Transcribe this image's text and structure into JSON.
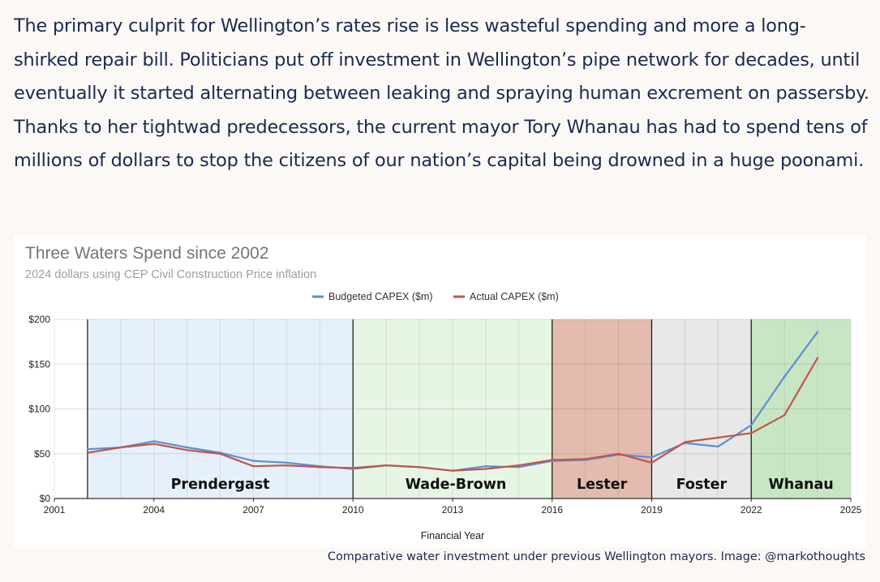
{
  "article": {
    "paragraph": "The primary culprit for Wellington’s rates rise is less wasteful spending and more a long-shirked repair bill. Politicians put off investment in Wellington’s pipe network for decades, until eventually it started alternating between leaking and spraying human excrement on passersby. Thanks to her tightwad predecessors, the current mayor Tory Whanau has had to spend tens of millions of dollars to stop the citizens of our nation’s capital being drowned in a huge poonami."
  },
  "caption": "Comparative water investment under previous Wellington mayors. Image: @markothoughts",
  "chart_data": {
    "type": "line",
    "title": "Three Waters Spend since 2002",
    "subtitle": "2024 dollars using CEP Civil Construction Price inflation",
    "xlabel": "Financial Year",
    "ylabel": "",
    "xlim": [
      2001,
      2025
    ],
    "ylim": [
      0,
      200
    ],
    "x_ticks": [
      "2001",
      "2004",
      "2007",
      "2010",
      "2013",
      "2016",
      "2019",
      "2022",
      "2025"
    ],
    "x_tick_values": [
      2001,
      2004,
      2007,
      2010,
      2013,
      2016,
      2019,
      2022,
      2025
    ],
    "y_ticks": [
      "$0",
      "$50",
      "$100",
      "$150",
      "$200"
    ],
    "y_tick_values": [
      0,
      50,
      100,
      150,
      200
    ],
    "grid": true,
    "legend_position": "top",
    "series": [
      {
        "name": "Budgeted CAPEX ($m)",
        "color": "#5b8fd3",
        "x": [
          2002,
          2003,
          2004,
          2005,
          2006,
          2007,
          2008,
          2009,
          2010,
          2011,
          2012,
          2013,
          2014,
          2015,
          2016,
          2017,
          2018,
          2019,
          2020,
          2021,
          2022,
          2023,
          2024
        ],
        "values": [
          55,
          57,
          64,
          57,
          51,
          42,
          40,
          36,
          33,
          37,
          35,
          31,
          36,
          35,
          42,
          43,
          49,
          46,
          62,
          58,
          82,
          136,
          186
        ]
      },
      {
        "name": "Actual CAPEX ($m)",
        "color": "#c0554a",
        "x": [
          2002,
          2003,
          2004,
          2005,
          2006,
          2007,
          2008,
          2009,
          2010,
          2011,
          2012,
          2013,
          2014,
          2015,
          2016,
          2017,
          2018,
          2019,
          2020,
          2021,
          2022,
          2023,
          2024
        ],
        "values": [
          51,
          57,
          61,
          54,
          50,
          36,
          37,
          35,
          34,
          37,
          35,
          31,
          33,
          37,
          43,
          44,
          50,
          40,
          63,
          68,
          73,
          93,
          157
        ]
      }
    ],
    "bands": [
      {
        "label": "Prendergast",
        "start": 2002,
        "end": 2010,
        "color": "#e6f0fb"
      },
      {
        "label": "Wade-Brown",
        "start": 2010,
        "end": 2016,
        "color": "#e7f5e4"
      },
      {
        "label": "Lester",
        "start": 2016,
        "end": 2019,
        "color": "#e3bcae"
      },
      {
        "label": "Foster",
        "start": 2019,
        "end": 2022,
        "color": "#e8e8e8"
      },
      {
        "label": "Whanau",
        "start": 2022,
        "end": 2025,
        "color": "#c8e6c4"
      }
    ],
    "divider_years": [
      2002,
      2010,
      2016,
      2019,
      2022
    ]
  }
}
